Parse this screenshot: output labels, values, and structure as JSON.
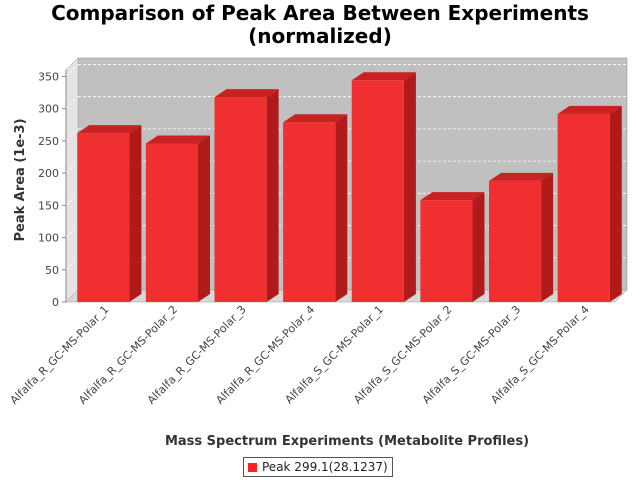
{
  "chart_data": {
    "type": "bar",
    "title_line1": "Comparison of Peak Area Between Experiments",
    "title_line2": "(normalized)",
    "xlabel": "Mass Spectrum Experiments (Metabolite Profiles)",
    "ylabel": "Peak Area (1e-3)",
    "categories": [
      "Alfalfa_R_GC-MS-Polar_1",
      "Alfalfa_R_GC-MS-Polar_2",
      "Alfalfa_R_GC-MS-Polar_3",
      "Alfalfa_R_GC-MS-Polar_4",
      "Alfalfa_S_GC-MS-Polar_1",
      "Alfalfa_S_GC-MS-Polar_2",
      "Alfalfa_S_GC-MS-Polar_3",
      "Alfalfa_S_GC-MS-Polar_4"
    ],
    "series": [
      {
        "name": "Peak 299.1(28.1237)",
        "values": [
          262,
          246,
          318,
          279,
          344,
          158,
          188,
          292
        ]
      }
    ],
    "ylim": [
      0,
      360
    ],
    "yticks": [
      0,
      50,
      100,
      150,
      200,
      250,
      300,
      350
    ],
    "grid": true,
    "legend_position": "bottom",
    "bar_color": "#ff2020"
  }
}
